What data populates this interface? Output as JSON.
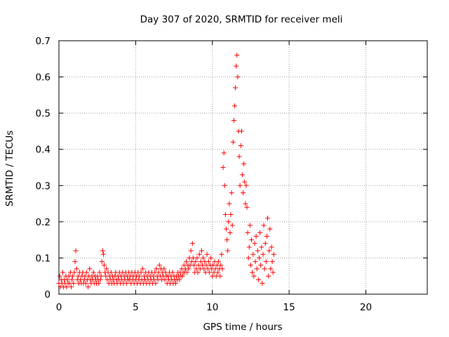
{
  "chart_data": {
    "type": "scatter",
    "title": "Day 307 of 2020, SRMTID for receiver meli",
    "xlabel": "GPS time / hours",
    "ylabel": "SRMTID / TECUs",
    "xlim": [
      0,
      24
    ],
    "ylim": [
      0,
      0.7
    ],
    "xticks": [
      0,
      5,
      10,
      15,
      20
    ],
    "yticks": [
      0,
      0.1,
      0.2,
      0.3,
      0.4,
      0.5,
      0.6,
      0.7
    ],
    "xtick_labels": [
      "0",
      "5",
      "10",
      "15",
      "20"
    ],
    "ytick_labels": [
      "0",
      "0.1",
      "0.2",
      "0.3",
      "0.4",
      "0.5",
      "0.6",
      "0.7"
    ],
    "grid": true,
    "marker": "+",
    "color": "#ff0000",
    "series": [
      {
        "name": "SRMTID",
        "points": [
          [
            0.0,
            0.03
          ],
          [
            0.05,
            0.05
          ],
          [
            0.1,
            0.02
          ],
          [
            0.15,
            0.04
          ],
          [
            0.2,
            0.03
          ],
          [
            0.25,
            0.06
          ],
          [
            0.3,
            0.02
          ],
          [
            0.35,
            0.04
          ],
          [
            0.4,
            0.03
          ],
          [
            0.45,
            0.05
          ],
          [
            0.5,
            0.02
          ],
          [
            0.55,
            0.04
          ],
          [
            0.6,
            0.03
          ],
          [
            0.65,
            0.05
          ],
          [
            0.7,
            0.03
          ],
          [
            0.75,
            0.06
          ],
          [
            0.8,
            0.02
          ],
          [
            0.85,
            0.04
          ],
          [
            0.9,
            0.05
          ],
          [
            0.95,
            0.03
          ],
          [
            1.0,
            0.06
          ],
          [
            1.05,
            0.09
          ],
          [
            1.1,
            0.12
          ],
          [
            1.15,
            0.07
          ],
          [
            1.2,
            0.04
          ],
          [
            1.25,
            0.05
          ],
          [
            1.3,
            0.03
          ],
          [
            1.35,
            0.06
          ],
          [
            1.4,
            0.04
          ],
          [
            1.45,
            0.03
          ],
          [
            1.5,
            0.05
          ],
          [
            1.55,
            0.06
          ],
          [
            1.6,
            0.03
          ],
          [
            1.65,
            0.04
          ],
          [
            1.7,
            0.05
          ],
          [
            1.75,
            0.03
          ],
          [
            1.8,
            0.06
          ],
          [
            1.85,
            0.04
          ],
          [
            1.9,
            0.02
          ],
          [
            1.95,
            0.05
          ],
          [
            2.0,
            0.07
          ],
          [
            2.05,
            0.04
          ],
          [
            2.1,
            0.03
          ],
          [
            2.15,
            0.05
          ],
          [
            2.2,
            0.04
          ],
          [
            2.25,
            0.06
          ],
          [
            2.3,
            0.03
          ],
          [
            2.35,
            0.05
          ],
          [
            2.4,
            0.04
          ],
          [
            2.45,
            0.03
          ],
          [
            2.5,
            0.05
          ],
          [
            2.55,
            0.04
          ],
          [
            2.6,
            0.03
          ],
          [
            2.65,
            0.06
          ],
          [
            2.7,
            0.04
          ],
          [
            2.75,
            0.05
          ],
          [
            2.8,
            0.09
          ],
          [
            2.85,
            0.12
          ],
          [
            2.9,
            0.11
          ],
          [
            2.95,
            0.08
          ],
          [
            3.0,
            0.06
          ],
          [
            3.05,
            0.05
          ],
          [
            3.1,
            0.07
          ],
          [
            3.15,
            0.04
          ],
          [
            3.2,
            0.06
          ],
          [
            3.25,
            0.03
          ],
          [
            3.3,
            0.05
          ],
          [
            3.35,
            0.04
          ],
          [
            3.4,
            0.06
          ],
          [
            3.45,
            0.03
          ],
          [
            3.5,
            0.05
          ],
          [
            3.55,
            0.04
          ],
          [
            3.6,
            0.03
          ],
          [
            3.65,
            0.05
          ],
          [
            3.7,
            0.06
          ],
          [
            3.75,
            0.04
          ],
          [
            3.8,
            0.03
          ],
          [
            3.85,
            0.05
          ],
          [
            3.9,
            0.04
          ],
          [
            3.95,
            0.06
          ],
          [
            4.0,
            0.03
          ],
          [
            4.05,
            0.05
          ],
          [
            4.1,
            0.04
          ],
          [
            4.15,
            0.06
          ],
          [
            4.2,
            0.03
          ],
          [
            4.25,
            0.05
          ],
          [
            4.3,
            0.04
          ],
          [
            4.35,
            0.06
          ],
          [
            4.4,
            0.03
          ],
          [
            4.45,
            0.05
          ],
          [
            4.5,
            0.04
          ],
          [
            4.55,
            0.06
          ],
          [
            4.6,
            0.04
          ],
          [
            4.65,
            0.05
          ],
          [
            4.7,
            0.03
          ],
          [
            4.75,
            0.06
          ],
          [
            4.8,
            0.04
          ],
          [
            4.85,
            0.05
          ],
          [
            4.9,
            0.03
          ],
          [
            4.95,
            0.06
          ],
          [
            5.0,
            0.04
          ],
          [
            5.05,
            0.05
          ],
          [
            5.1,
            0.03
          ],
          [
            5.15,
            0.06
          ],
          [
            5.2,
            0.04
          ],
          [
            5.25,
            0.05
          ],
          [
            5.3,
            0.03
          ],
          [
            5.35,
            0.06
          ],
          [
            5.4,
            0.04
          ],
          [
            5.45,
            0.07
          ],
          [
            5.5,
            0.03
          ],
          [
            5.55,
            0.05
          ],
          [
            5.6,
            0.04
          ],
          [
            5.65,
            0.06
          ],
          [
            5.7,
            0.03
          ],
          [
            5.75,
            0.05
          ],
          [
            5.8,
            0.04
          ],
          [
            5.85,
            0.06
          ],
          [
            5.9,
            0.03
          ],
          [
            5.95,
            0.05
          ],
          [
            6.0,
            0.04
          ],
          [
            6.05,
            0.06
          ],
          [
            6.1,
            0.03
          ],
          [
            6.15,
            0.05
          ],
          [
            6.2,
            0.04
          ],
          [
            6.25,
            0.06
          ],
          [
            6.3,
            0.03
          ],
          [
            6.35,
            0.07
          ],
          [
            6.4,
            0.05
          ],
          [
            6.45,
            0.04
          ],
          [
            6.5,
            0.06
          ],
          [
            6.55,
            0.08
          ],
          [
            6.6,
            0.05
          ],
          [
            6.65,
            0.07
          ],
          [
            6.7,
            0.04
          ],
          [
            6.75,
            0.06
          ],
          [
            6.8,
            0.05
          ],
          [
            6.85,
            0.07
          ],
          [
            6.9,
            0.04
          ],
          [
            6.95,
            0.06
          ],
          [
            7.0,
            0.05
          ],
          [
            7.05,
            0.03
          ],
          [
            7.1,
            0.05
          ],
          [
            7.15,
            0.04
          ],
          [
            7.2,
            0.06
          ],
          [
            7.25,
            0.03
          ],
          [
            7.3,
            0.05
          ],
          [
            7.35,
            0.04
          ],
          [
            7.4,
            0.06
          ],
          [
            7.45,
            0.03
          ],
          [
            7.5,
            0.05
          ],
          [
            7.55,
            0.04
          ],
          [
            7.6,
            0.03
          ],
          [
            7.65,
            0.05
          ],
          [
            7.7,
            0.04
          ],
          [
            7.75,
            0.06
          ],
          [
            7.8,
            0.05
          ],
          [
            7.85,
            0.04
          ],
          [
            7.9,
            0.06
          ],
          [
            7.95,
            0.05
          ],
          [
            8.0,
            0.07
          ],
          [
            8.05,
            0.05
          ],
          [
            8.1,
            0.06
          ],
          [
            8.15,
            0.08
          ],
          [
            8.2,
            0.06
          ],
          [
            8.25,
            0.07
          ],
          [
            8.3,
            0.09
          ],
          [
            8.35,
            0.06
          ],
          [
            8.4,
            0.08
          ],
          [
            8.45,
            0.07
          ],
          [
            8.5,
            0.1
          ],
          [
            8.55,
            0.08
          ],
          [
            8.6,
            0.12
          ],
          [
            8.65,
            0.09
          ],
          [
            8.7,
            0.14
          ],
          [
            8.75,
            0.1
          ],
          [
            8.8,
            0.08
          ],
          [
            8.85,
            0.06
          ],
          [
            8.9,
            0.09
          ],
          [
            8.95,
            0.07
          ],
          [
            9.0,
            0.1
          ],
          [
            9.05,
            0.06
          ],
          [
            9.1,
            0.08
          ],
          [
            9.15,
            0.11
          ],
          [
            9.2,
            0.07
          ],
          [
            9.25,
            0.09
          ],
          [
            9.3,
            0.12
          ],
          [
            9.35,
            0.08
          ],
          [
            9.4,
            0.1
          ],
          [
            9.45,
            0.07
          ],
          [
            9.5,
            0.09
          ],
          [
            9.55,
            0.06
          ],
          [
            9.6,
            0.08
          ],
          [
            9.65,
            0.11
          ],
          [
            9.7,
            0.07
          ],
          [
            9.75,
            0.09
          ],
          [
            9.8,
            0.06
          ],
          [
            9.85,
            0.08
          ],
          [
            9.9,
            0.1
          ],
          [
            9.95,
            0.07
          ],
          [
            10.0,
            0.05
          ],
          [
            10.05,
            0.08
          ],
          [
            10.1,
            0.06
          ],
          [
            10.15,
            0.09
          ],
          [
            10.2,
            0.07
          ],
          [
            10.25,
            0.05
          ],
          [
            10.3,
            0.08
          ],
          [
            10.35,
            0.06
          ],
          [
            10.4,
            0.09
          ],
          [
            10.45,
            0.07
          ],
          [
            10.5,
            0.05
          ],
          [
            10.55,
            0.08
          ],
          [
            10.6,
            0.11
          ],
          [
            10.65,
            0.07
          ],
          [
            10.7,
            0.35
          ],
          [
            10.75,
            0.39
          ],
          [
            10.8,
            0.3
          ],
          [
            10.85,
            0.22
          ],
          [
            10.9,
            0.18
          ],
          [
            10.95,
            0.15
          ],
          [
            11.0,
            0.12
          ],
          [
            11.05,
            0.2
          ],
          [
            11.1,
            0.25
          ],
          [
            11.15,
            0.17
          ],
          [
            11.2,
            0.22
          ],
          [
            11.25,
            0.28
          ],
          [
            11.3,
            0.19
          ],
          [
            11.35,
            0.42
          ],
          [
            11.4,
            0.48
          ],
          [
            11.45,
            0.52
          ],
          [
            11.5,
            0.57
          ],
          [
            11.55,
            0.63
          ],
          [
            11.6,
            0.66
          ],
          [
            11.65,
            0.6
          ],
          [
            11.7,
            0.45
          ],
          [
            11.75,
            0.38
          ],
          [
            11.8,
            0.3
          ],
          [
            11.85,
            0.41
          ],
          [
            11.9,
            0.45
          ],
          [
            11.95,
            0.33
          ],
          [
            12.0,
            0.28
          ],
          [
            12.05,
            0.36
          ],
          [
            12.1,
            0.31
          ],
          [
            12.15,
            0.25
          ],
          [
            12.2,
            0.3
          ],
          [
            12.25,
            0.24
          ],
          [
            12.3,
            0.17
          ],
          [
            12.35,
            0.1
          ],
          [
            12.4,
            0.13
          ],
          [
            12.45,
            0.19
          ],
          [
            12.5,
            0.08
          ],
          [
            12.55,
            0.15
          ],
          [
            12.6,
            0.06
          ],
          [
            12.65,
            0.11
          ],
          [
            12.7,
            0.05
          ],
          [
            12.75,
            0.14
          ],
          [
            12.8,
            0.09
          ],
          [
            12.85,
            0.16
          ],
          [
            12.9,
            0.07
          ],
          [
            12.95,
            0.12
          ],
          [
            13.0,
            0.04
          ],
          [
            13.05,
            0.1
          ],
          [
            13.1,
            0.17
          ],
          [
            13.15,
            0.08
          ],
          [
            13.2,
            0.13
          ],
          [
            13.25,
            0.03
          ],
          [
            13.3,
            0.11
          ],
          [
            13.35,
            0.19
          ],
          [
            13.4,
            0.07
          ],
          [
            13.45,
            0.14
          ],
          [
            13.5,
            0.09
          ],
          [
            13.55,
            0.16
          ],
          [
            13.6,
            0.21
          ],
          [
            13.65,
            0.05
          ],
          [
            13.7,
            0.12
          ],
          [
            13.75,
            0.18
          ],
          [
            13.8,
            0.07
          ],
          [
            13.85,
            0.13
          ],
          [
            13.9,
            0.09
          ],
          [
            13.95,
            0.06
          ],
          [
            14.0,
            0.11
          ]
        ]
      }
    ]
  }
}
